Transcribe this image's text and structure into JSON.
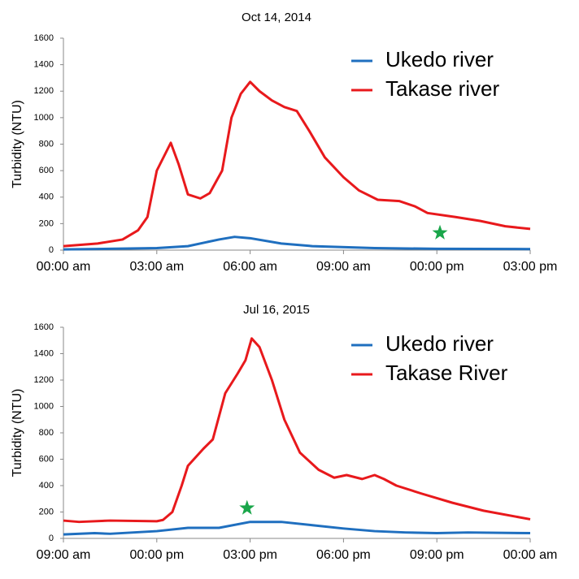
{
  "chart_data": [
    {
      "type": "line",
      "title": "Oct 14, 2014",
      "y_label": "Turbidity (NTU)",
      "xlim": [
        0,
        15
      ],
      "xticks": [
        {
          "value": 0,
          "label": "00:00 am"
        },
        {
          "value": 3,
          "label": "03:00 am"
        },
        {
          "value": 6,
          "label": "06:00 am"
        },
        {
          "value": 9,
          "label": "09:00 am"
        },
        {
          "value": 12,
          "label": "00:00 pm"
        },
        {
          "value": 15,
          "label": "03:00 pm"
        }
      ],
      "ylim": [
        0,
        1600
      ],
      "yticks": [
        0,
        200,
        400,
        600,
        800,
        1000,
        1200,
        1400,
        1600
      ],
      "series": [
        {
          "name": "Ukedo river",
          "color": "#1f6fbf",
          "x": [
            0,
            3,
            4,
            5,
            5.5,
            6,
            7,
            8,
            10,
            12,
            15
          ],
          "values": [
            5,
            15,
            30,
            80,
            100,
            90,
            50,
            30,
            15,
            10,
            8
          ]
        },
        {
          "name": "Takase river",
          "color": "#e8191c",
          "x": [
            0,
            1.1,
            1.9,
            2.4,
            2.7,
            3.0,
            3.45,
            3.7,
            4.0,
            4.4,
            4.7,
            5.1,
            5.4,
            5.7,
            6.0,
            6.3,
            6.7,
            7.1,
            7.5,
            7.9,
            8.4,
            9.0,
            9.5,
            10.1,
            10.8,
            11.3,
            11.7,
            12.6,
            13.4,
            14.2,
            15
          ],
          "values": [
            30,
            50,
            80,
            150,
            250,
            600,
            810,
            650,
            420,
            390,
            430,
            600,
            1000,
            1180,
            1270,
            1200,
            1130,
            1080,
            1050,
            900,
            700,
            550,
            450,
            380,
            370,
            330,
            280,
            250,
            220,
            180,
            160
          ]
        }
      ],
      "markers": [
        {
          "x": 12.1,
          "y": 130,
          "color": "#1aa64a"
        }
      ]
    },
    {
      "type": "line",
      "title": "Jul 16, 2015",
      "y_label": "Turbidity (NTU)",
      "xlim": [
        0,
        15
      ],
      "xticks": [
        {
          "value": 0,
          "label": "09:00 am"
        },
        {
          "value": 3,
          "label": "00:00 pm"
        },
        {
          "value": 6,
          "label": "03:00 pm"
        },
        {
          "value": 9,
          "label": "06:00 pm"
        },
        {
          "value": 12,
          "label": "09:00 pm"
        },
        {
          "value": 15,
          "label": "00:00 am"
        }
      ],
      "ylim": [
        0,
        1600
      ],
      "yticks": [
        0,
        200,
        400,
        600,
        800,
        1000,
        1200,
        1400,
        1600
      ],
      "series": [
        {
          "name": "Ukedo river",
          "color": "#1f6fbf",
          "x": [
            0,
            1,
            1.5,
            3,
            4,
            5,
            6,
            7,
            8,
            9,
            10,
            11,
            12,
            13,
            15
          ],
          "values": [
            30,
            40,
            35,
            55,
            80,
            80,
            125,
            125,
            100,
            75,
            55,
            45,
            40,
            45,
            40
          ]
        },
        {
          "name": "Takase River",
          "color": "#e8191c",
          "x": [
            0,
            0.5,
            1.5,
            3,
            3.2,
            3.5,
            3.8,
            4.0,
            4.5,
            4.8,
            5.2,
            5.6,
            5.85,
            6.05,
            6.3,
            6.7,
            7.1,
            7.6,
            8.2,
            8.7,
            9.1,
            9.6,
            10.0,
            10.3,
            10.7,
            11.5,
            12.5,
            13.5,
            15
          ],
          "values": [
            135,
            125,
            135,
            130,
            140,
            200,
            400,
            550,
            680,
            750,
            1100,
            1250,
            1350,
            1515,
            1450,
            1200,
            900,
            650,
            520,
            460,
            480,
            450,
            480,
            450,
            400,
            340,
            270,
            210,
            145
          ]
        }
      ],
      "markers": [
        {
          "x": 5.9,
          "y": 230,
          "color": "#1aa64a"
        }
      ]
    }
  ]
}
